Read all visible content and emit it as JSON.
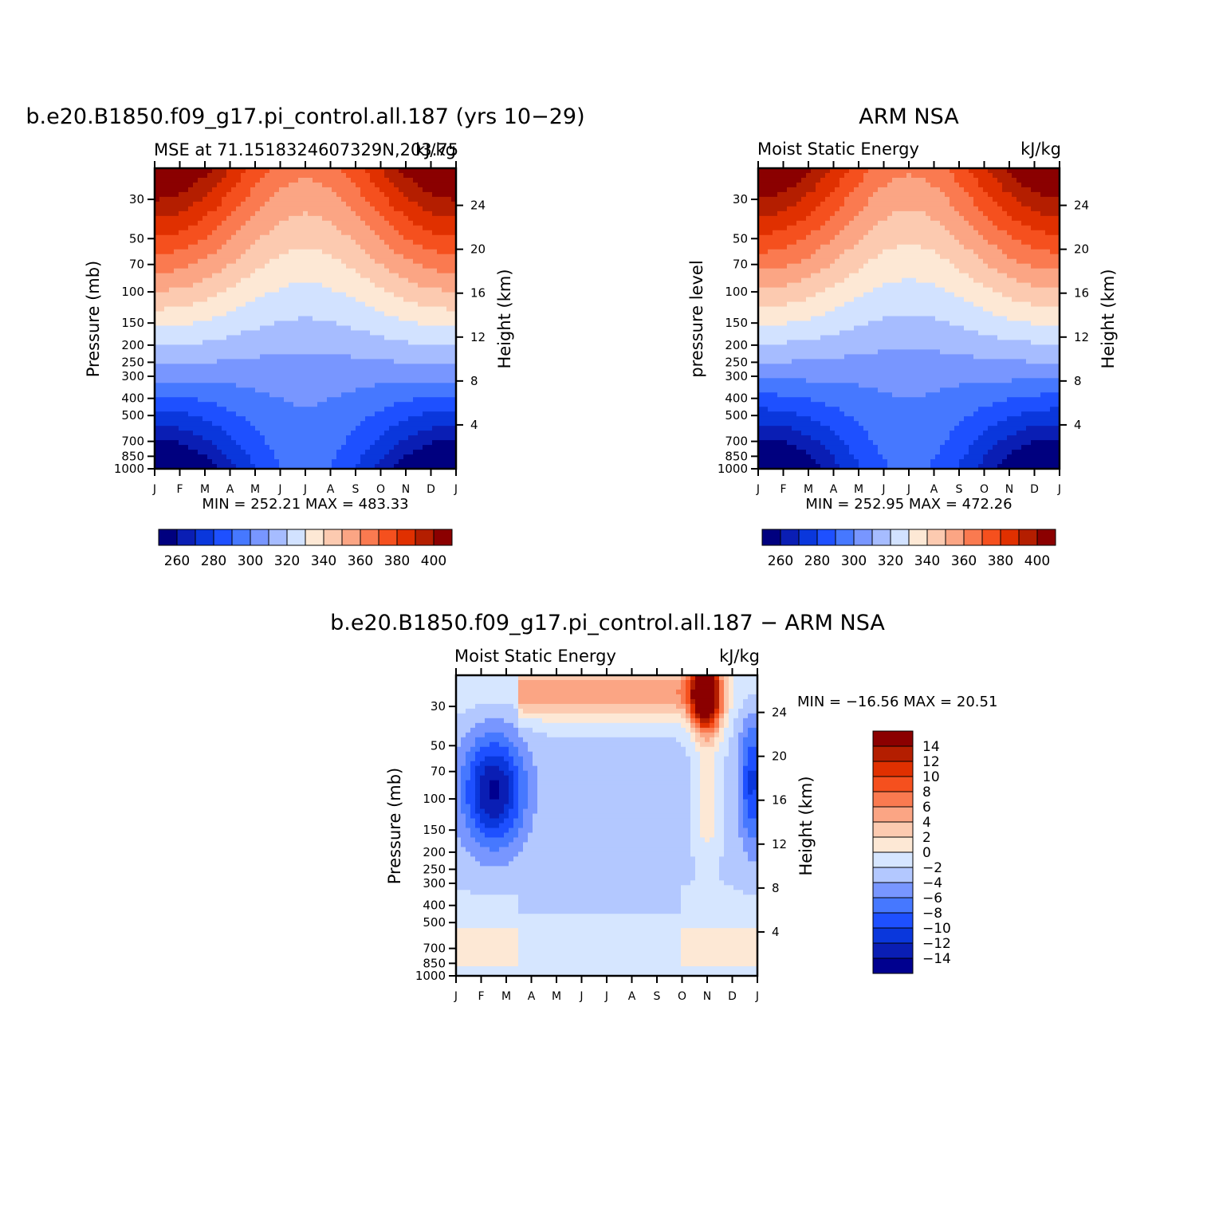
{
  "chart_data": [
    {
      "type": "heatmap",
      "title": "b.e20.B1850.f09_g17.pi_control.all.187 (yrs 10-29)",
      "subtitle_left": "MSE at 71.1518324607329N,203.75",
      "subtitle_right": "kJ/kg",
      "ylabel": "Pressure (mb)",
      "ylabel_right": "Height (km)",
      "stats": "MIN = 252.21 MAX = 483.33",
      "x": [
        "J",
        "F",
        "M",
        "A",
        "M",
        "J",
        "J",
        "A",
        "S",
        "O",
        "N",
        "D",
        "J"
      ],
      "y": [
        30,
        50,
        70,
        100,
        150,
        200,
        250,
        300,
        400,
        500,
        700,
        850,
        1000
      ],
      "y_right": [
        24,
        20,
        16,
        12,
        8,
        4
      ],
      "ylim": [
        1000,
        20
      ],
      "y_scale": "log",
      "levels": [
        260,
        270,
        280,
        290,
        300,
        310,
        320,
        330,
        340,
        350,
        360,
        370,
        380,
        390,
        400
      ],
      "colorbar_labels": [
        "260",
        "280",
        "300",
        "320",
        "340",
        "360",
        "380",
        "400"
      ],
      "colorbar_position": "bottom"
    },
    {
      "type": "heatmap",
      "title": "ARM NSA",
      "subtitle_left": "Moist Static Energy",
      "subtitle_right": "kJ/kg",
      "ylabel": "pressure level",
      "ylabel_right": "Height (km)",
      "stats": "MIN = 252.95 MAX = 472.26",
      "x": [
        "J",
        "F",
        "M",
        "A",
        "M",
        "J",
        "J",
        "A",
        "S",
        "O",
        "N",
        "D",
        "J"
      ],
      "y": [
        30,
        50,
        70,
        100,
        150,
        200,
        250,
        300,
        400,
        500,
        700,
        850,
        1000
      ],
      "y_right": [
        24,
        20,
        16,
        12,
        8,
        4
      ],
      "ylim": [
        1000,
        20
      ],
      "y_scale": "log",
      "levels": [
        260,
        270,
        280,
        290,
        300,
        310,
        320,
        330,
        340,
        350,
        360,
        370,
        380,
        390,
        400
      ],
      "colorbar_labels": [
        "260",
        "280",
        "300",
        "320",
        "340",
        "360",
        "380",
        "400"
      ],
      "colorbar_position": "bottom"
    },
    {
      "type": "heatmap",
      "title": "b.e20.B1850.f09_g17.pi_control.all.187 - ARM NSA",
      "subtitle_left": "Moist Static Energy",
      "subtitle_right": "kJ/kg",
      "ylabel": "Pressure (mb)",
      "ylabel_right": "Height (km)",
      "stats": "MIN = -16.56 MAX =  20.51",
      "x": [
        "J",
        "F",
        "M",
        "A",
        "M",
        "J",
        "J",
        "A",
        "S",
        "O",
        "N",
        "D",
        "J"
      ],
      "y": [
        30,
        50,
        70,
        100,
        150,
        200,
        250,
        300,
        400,
        500,
        700,
        850,
        1000
      ],
      "y_right": [
        24,
        20,
        16,
        12,
        8,
        4
      ],
      "ylim": [
        1000,
        20
      ],
      "y_scale": "log",
      "levels": [
        -14,
        -12,
        -10,
        -8,
        -6,
        -4,
        -2,
        0,
        2,
        4,
        6,
        8,
        10,
        12,
        14
      ],
      "colorbar_labels": [
        "14",
        "12",
        "10",
        "8",
        "6",
        "4",
        "2",
        "0",
        "-2",
        "-4",
        "-6",
        "-8",
        "-10",
        "-12",
        "-14"
      ],
      "colorbar_position": "right"
    }
  ],
  "colors": {
    "mse_palette": [
      "#00007f",
      "#0a1eb4",
      "#0a37dc",
      "#1e50ff",
      "#4678ff",
      "#7896ff",
      "#a6bcff",
      "#d2e2ff",
      "#fde8d5",
      "#fccab0",
      "#fba584",
      "#fa7a50",
      "#f5501e",
      "#e03000",
      "#b41e00",
      "#8b0000"
    ],
    "diff_palette": [
      "#00008f",
      "#0a1eb4",
      "#0a37dc",
      "#1e50ff",
      "#4678ff",
      "#7896ff",
      "#b3c8ff",
      "#d6e6ff",
      "#fde8d5",
      "#fccab0",
      "#fba584",
      "#fa7a50",
      "#f5501e",
      "#e03000",
      "#b41e00",
      "#8b0000"
    ]
  }
}
